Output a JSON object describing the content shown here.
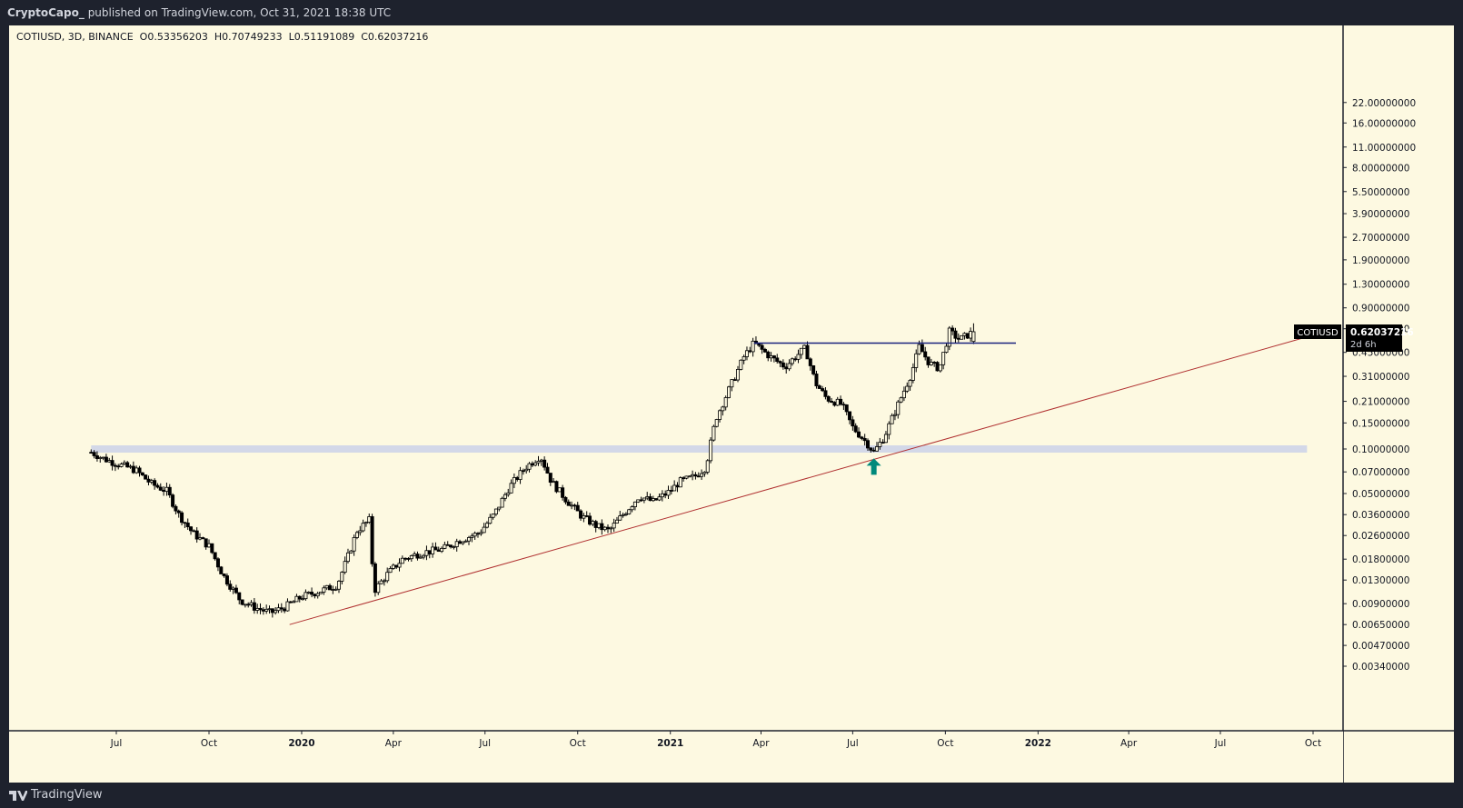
{
  "header": {
    "publisher": "CryptoCapo_",
    "published_text": "published on TradingView.com, Oct 31, 2021 18:38 UTC"
  },
  "footer": {
    "brand": "TradingView"
  },
  "chart_data": {
    "type": "candlestick",
    "symbol": "COTIUSD",
    "interval": "3D",
    "exchange": "BINANCE",
    "ohlc_labels": {
      "open": "O0.53356203",
      "high": "H0.70749233",
      "low": "L0.51191089",
      "close": "C0.62037216"
    },
    "last_price_label": "0.62037216",
    "countdown": "2d 6h",
    "price_axis_scale": "log",
    "price_ticks": [
      "22.00000000",
      "16.00000000",
      "11.00000000",
      "8.00000000",
      "5.50000000",
      "3.90000000",
      "2.70000000",
      "1.90000000",
      "1.30000000",
      "0.90000000",
      "0.65000000",
      "0.45000000",
      "0.31000000",
      "0.21000000",
      "0.15000000",
      "0.10000000",
      "0.07000000",
      "0.05000000",
      "0.03600000",
      "0.02600000",
      "0.01800000",
      "0.01300000",
      "0.00900000",
      "0.00650000",
      "0.00470000",
      "0.00340000"
    ],
    "price_tick_values": [
      22,
      16,
      11,
      8,
      5.5,
      3.9,
      2.7,
      1.9,
      1.3,
      0.9,
      0.65,
      0.45,
      0.31,
      0.21,
      0.15,
      0.1,
      0.07,
      0.05,
      0.036,
      0.026,
      0.018,
      0.013,
      0.009,
      0.0065,
      0.0047,
      0.0034
    ],
    "time_ticks": [
      {
        "label": "Jul",
        "date": "2019-07-01",
        "bold": false
      },
      {
        "label": "Oct",
        "date": "2019-10-01",
        "bold": false
      },
      {
        "label": "2020",
        "date": "2020-01-01",
        "bold": true
      },
      {
        "label": "Apr",
        "date": "2020-04-01",
        "bold": false
      },
      {
        "label": "Jul",
        "date": "2020-07-01",
        "bold": false
      },
      {
        "label": "Oct",
        "date": "2020-10-01",
        "bold": false
      },
      {
        "label": "2021",
        "date": "2021-01-01",
        "bold": true
      },
      {
        "label": "Apr",
        "date": "2021-04-01",
        "bold": false
      },
      {
        "label": "Jul",
        "date": "2021-07-01",
        "bold": false
      },
      {
        "label": "Oct",
        "date": "2021-10-01",
        "bold": false
      },
      {
        "label": "2022",
        "date": "2022-01-01",
        "bold": true
      },
      {
        "label": "Apr",
        "date": "2022-04-01",
        "bold": false
      },
      {
        "label": "Jul",
        "date": "2022-07-01",
        "bold": false
      },
      {
        "label": "Oct",
        "date": "2022-10-01",
        "bold": false
      }
    ],
    "close_path": [
      [
        "2019-06-06",
        0.095
      ],
      [
        "2019-06-20",
        0.085
      ],
      [
        "2019-07-05",
        0.078
      ],
      [
        "2019-07-20",
        0.072
      ],
      [
        "2019-08-05",
        0.058
      ],
      [
        "2019-08-20",
        0.052
      ],
      [
        "2019-09-01",
        0.036
      ],
      [
        "2019-09-15",
        0.027
      ],
      [
        "2019-10-01",
        0.022
      ],
      [
        "2019-10-15",
        0.014
      ],
      [
        "2019-11-01",
        0.0095
      ],
      [
        "2019-11-15",
        0.0085
      ],
      [
        "2019-12-01",
        0.0078
      ],
      [
        "2019-12-15",
        0.0085
      ],
      [
        "2020-01-01",
        0.01
      ],
      [
        "2020-01-20",
        0.011
      ],
      [
        "2020-02-05",
        0.012
      ],
      [
        "2020-02-15",
        0.018
      ],
      [
        "2020-02-25",
        0.028
      ],
      [
        "2020-03-08",
        0.033
      ],
      [
        "2020-03-13",
        0.011
      ],
      [
        "2020-03-25",
        0.014
      ],
      [
        "2020-04-10",
        0.018
      ],
      [
        "2020-05-01",
        0.02
      ],
      [
        "2020-05-20",
        0.021
      ],
      [
        "2020-06-05",
        0.024
      ],
      [
        "2020-06-25",
        0.027
      ],
      [
        "2020-07-10",
        0.036
      ],
      [
        "2020-07-25",
        0.055
      ],
      [
        "2020-08-10",
        0.075
      ],
      [
        "2020-08-25",
        0.09
      ],
      [
        "2020-09-05",
        0.06
      ],
      [
        "2020-09-20",
        0.045
      ],
      [
        "2020-10-05",
        0.035
      ],
      [
        "2020-10-20",
        0.03
      ],
      [
        "2020-11-01",
        0.028
      ],
      [
        "2020-11-15",
        0.036
      ],
      [
        "2020-12-01",
        0.048
      ],
      [
        "2020-12-15",
        0.044
      ],
      [
        "2021-01-01",
        0.052
      ],
      [
        "2021-01-10",
        0.06
      ],
      [
        "2021-01-25",
        0.065
      ],
      [
        "2021-02-05",
        0.075
      ],
      [
        "2021-02-15",
        0.16
      ],
      [
        "2021-03-01",
        0.26
      ],
      [
        "2021-03-15",
        0.42
      ],
      [
        "2021-03-25",
        0.52
      ],
      [
        "2021-04-10",
        0.42
      ],
      [
        "2021-04-25",
        0.36
      ],
      [
        "2021-05-05",
        0.42
      ],
      [
        "2021-05-15",
        0.48
      ],
      [
        "2021-05-25",
        0.28
      ],
      [
        "2021-06-05",
        0.22
      ],
      [
        "2021-06-20",
        0.2
      ],
      [
        "2021-07-01",
        0.14
      ],
      [
        "2021-07-15",
        0.11
      ],
      [
        "2021-07-22",
        0.095
      ],
      [
        "2021-08-01",
        0.12
      ],
      [
        "2021-08-15",
        0.2
      ],
      [
        "2021-08-28",
        0.32
      ],
      [
        "2021-09-05",
        0.49
      ],
      [
        "2021-09-15",
        0.38
      ],
      [
        "2021-09-25",
        0.35
      ],
      [
        "2021-10-05",
        0.62
      ],
      [
        "2021-10-15",
        0.55
      ],
      [
        "2021-10-29",
        0.62
      ]
    ],
    "annotations": {
      "support_band": {
        "price": 0.1,
        "start": "2019-06-06",
        "end": "2022-09-25",
        "color": "#d3d8e8"
      },
      "resistance_line": {
        "price": 0.52,
        "start": "2021-03-25",
        "end": "2021-12-10",
        "color": "#1a237e"
      },
      "trendline": {
        "start_date": "2019-12-20",
        "start_price": 0.0065,
        "end_date": "2022-10-13",
        "end_price": 0.62,
        "color": "#b03030"
      },
      "arrow": {
        "date": "2021-07-22",
        "price": 0.075,
        "color": "#00897b",
        "direction": "up"
      }
    },
    "colors": {
      "background": "#fdf9e1",
      "candle_up": "#fdf9e1",
      "candle_down": "#000000",
      "frame": "#1e222d"
    },
    "grid": false
  }
}
